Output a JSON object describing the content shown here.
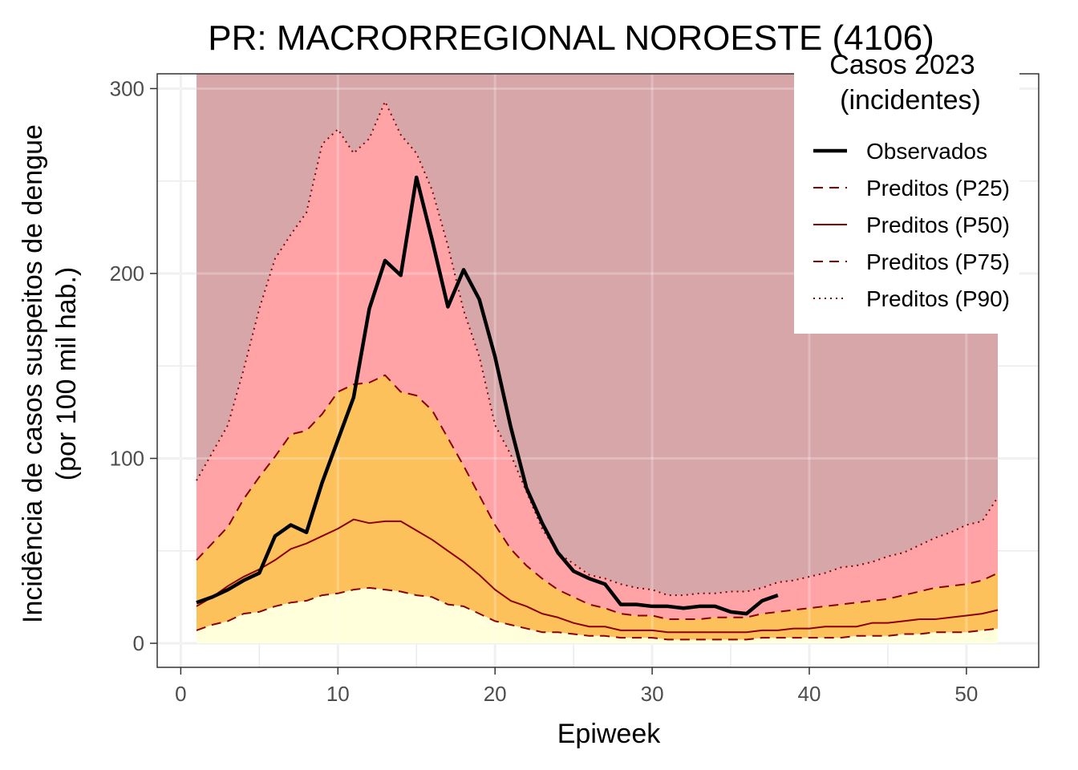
{
  "chart_data": {
    "type": "area",
    "title": "PR: MACRORREGIONAL NOROESTE (4106)",
    "xlabel": "Epiweek",
    "ylabel_line1": "Incidência de casos suspeitos de dengue",
    "ylabel_line2": "(por 100 mil hab.)",
    "xlim": [
      -1.5,
      54.6
    ],
    "ylim": [
      -13,
      308
    ],
    "x_ticks": [
      0,
      10,
      20,
      30,
      40,
      50
    ],
    "y_ticks": [
      0,
      100,
      200,
      300
    ],
    "x_tick_labels": [
      "0",
      "10",
      "20",
      "30",
      "40",
      "50"
    ],
    "y_tick_labels": [
      "0",
      "100",
      "200",
      "300"
    ],
    "grid": true,
    "legend": {
      "title_line1": "Casos 2023",
      "title_line2": "(incidentes)",
      "position": "top-right",
      "entries": [
        {
          "label": "Observados",
          "style": "solid-thick",
          "color": "#000000"
        },
        {
          "label": "Preditos (P25)",
          "style": "dashed",
          "color": "#8b0000"
        },
        {
          "label": "Preditos (P50)",
          "style": "solid",
          "color": "#8b0000"
        },
        {
          "label": "Preditos (P75)",
          "style": "dashed",
          "color": "#8b0000"
        },
        {
          "label": "Preditos (P90)",
          "style": "dotted",
          "color": "#8b0000"
        }
      ]
    },
    "band_colors": {
      "below_p25": "#ffffdb",
      "p25_p75": "#fcc15a",
      "p75_p90": "#ffa3a6",
      "above_p90": "#d6a6a8"
    },
    "band_top": 308,
    "weeks": [
      1,
      2,
      3,
      4,
      5,
      6,
      7,
      8,
      9,
      10,
      11,
      12,
      13,
      14,
      15,
      16,
      17,
      18,
      19,
      20,
      21,
      22,
      23,
      24,
      25,
      26,
      27,
      28,
      29,
      30,
      31,
      32,
      33,
      34,
      35,
      36,
      37,
      38,
      39,
      40,
      41,
      42,
      43,
      44,
      45,
      46,
      47,
      48,
      49,
      50,
      51,
      52
    ],
    "series": [
      {
        "name": "Preditos (P25)",
        "values": [
          7,
          10,
          12,
          16,
          17,
          20,
          22,
          23,
          26,
          27,
          29,
          30,
          29,
          28,
          26,
          25,
          21,
          20,
          16,
          12,
          10,
          8,
          6,
          6,
          5,
          4,
          4,
          3,
          3,
          3,
          2,
          2,
          2,
          2,
          2,
          2,
          3,
          3,
          3,
          3,
          3,
          3,
          4,
          4,
          4,
          5,
          5,
          6,
          6,
          6,
          7,
          8
        ]
      },
      {
        "name": "Preditos (P50)",
        "values": [
          20,
          25,
          31,
          36,
          40,
          45,
          51,
          54,
          58,
          62,
          67,
          65,
          66,
          66,
          61,
          56,
          50,
          44,
          37,
          29,
          23,
          20,
          16,
          14,
          11,
          9,
          9,
          7,
          7,
          7,
          6,
          6,
          6,
          6,
          6,
          6,
          7,
          7,
          8,
          8,
          9,
          9,
          9,
          11,
          11,
          12,
          13,
          13,
          14,
          15,
          16,
          18
        ]
      },
      {
        "name": "Preditos (P75)",
        "values": [
          45,
          54,
          63,
          78,
          90,
          101,
          113,
          115,
          124,
          136,
          140,
          141,
          145,
          136,
          134,
          126,
          111,
          96,
          80,
          64,
          51,
          42,
          35,
          29,
          25,
          21,
          19,
          16,
          15,
          15,
          13,
          13,
          13,
          14,
          14,
          14,
          16,
          17,
          18,
          19,
          20,
          21,
          22,
          23,
          24,
          26,
          28,
          30,
          31,
          32,
          34,
          38
        ]
      },
      {
        "name": "Preditos (P90)",
        "values": [
          88,
          103,
          118,
          148,
          181,
          208,
          221,
          233,
          270,
          278,
          265,
          273,
          293,
          275,
          265,
          245,
          215,
          180,
          155,
          118,
          102,
          82,
          62,
          49,
          43,
          37,
          35,
          32,
          30,
          29,
          26,
          26,
          27,
          27,
          28,
          28,
          30,
          33,
          34,
          36,
          38,
          41,
          42,
          44,
          47,
          49,
          53,
          57,
          60,
          64,
          66,
          79
        ]
      },
      {
        "name": "Observados",
        "weeks": [
          1,
          2,
          3,
          4,
          5,
          6,
          7,
          8,
          9,
          10,
          11,
          12,
          13,
          14,
          15,
          16,
          17,
          18,
          19,
          20,
          21,
          22,
          23,
          24,
          25,
          26,
          27,
          28,
          29,
          30,
          31,
          32,
          33,
          34,
          35,
          36,
          37,
          38
        ],
        "values": [
          22,
          25,
          29,
          34,
          38,
          58,
          64,
          60,
          87,
          110,
          133,
          181,
          207,
          199,
          252,
          218,
          182,
          202,
          186,
          155,
          117,
          84,
          65,
          49,
          39,
          35,
          32,
          21,
          21,
          20,
          20,
          19,
          20,
          20,
          17,
          16,
          23,
          26
        ]
      }
    ]
  }
}
